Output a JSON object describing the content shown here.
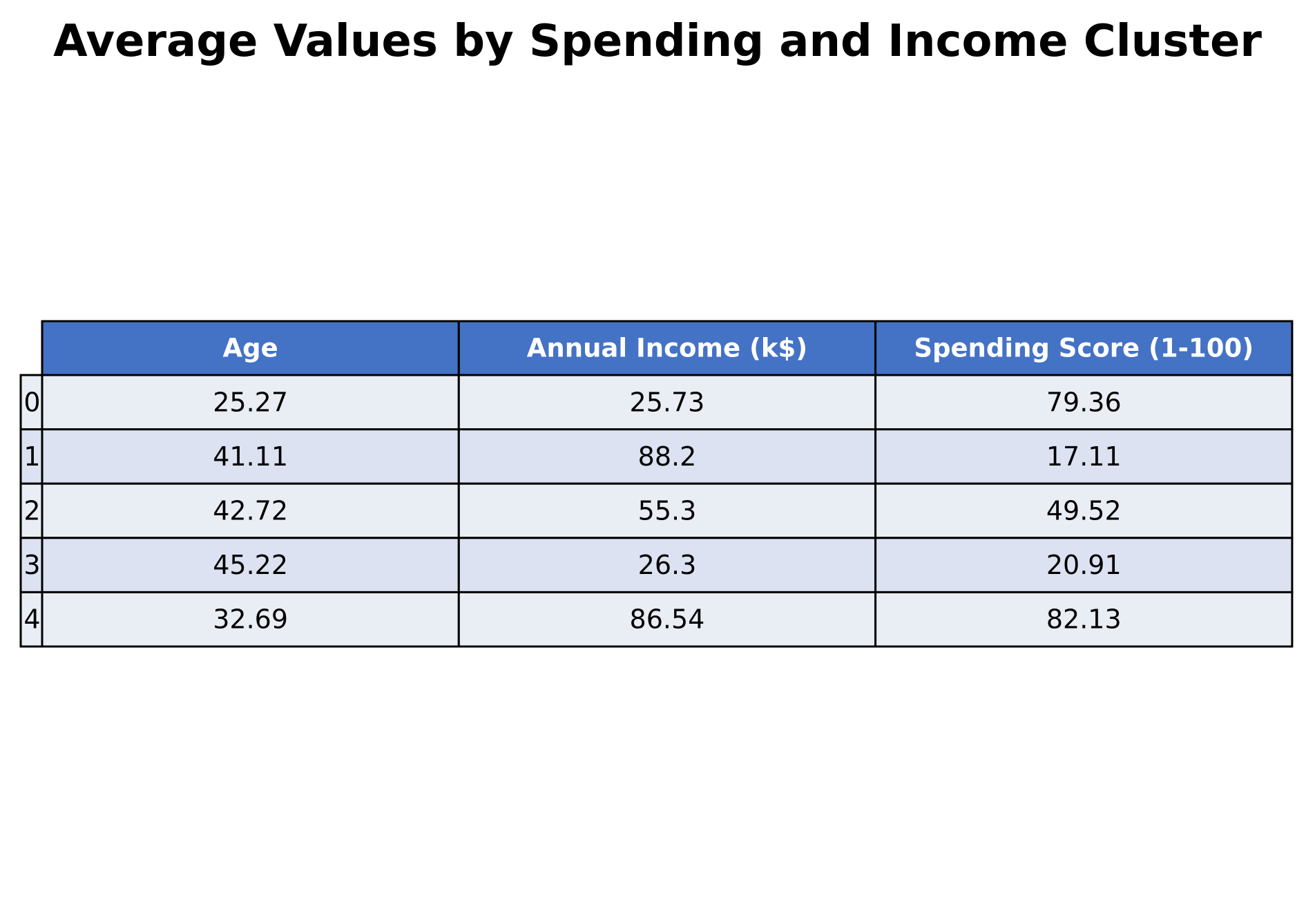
{
  "chart_data": {
    "type": "table",
    "title": "Average Values by Spending and Income Cluster",
    "columns": [
      "Age",
      "Annual Income (k$)",
      "Spending Score (1-100)"
    ],
    "row_labels": [
      "0",
      "1",
      "2",
      "3",
      "4"
    ],
    "rows": [
      [
        "25.27",
        "25.73",
        "79.36"
      ],
      [
        "41.11",
        "88.2",
        "17.11"
      ],
      [
        "42.72",
        "55.3",
        "49.52"
      ],
      [
        "45.22",
        "26.3",
        "20.91"
      ],
      [
        "32.69",
        "86.54",
        "82.13"
      ]
    ]
  },
  "colors": {
    "header_fill": "#4472c4",
    "header_text": "#ffffff",
    "row_fill_even": "#e9edf4",
    "row_fill_odd": "#dce2f1",
    "cell_border": "#000000",
    "cell_text": "#000000"
  }
}
